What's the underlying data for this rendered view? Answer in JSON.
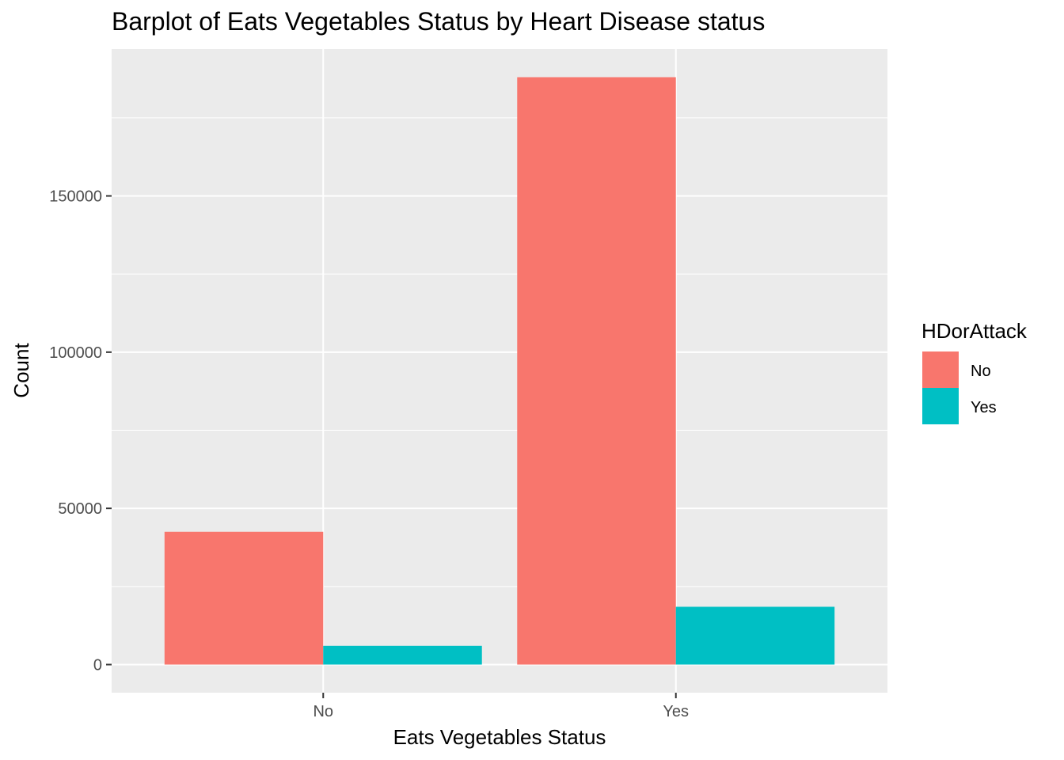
{
  "chart_data": {
    "type": "bar",
    "title": "Barplot of Eats Vegetables Status by Heart Disease status",
    "xlabel": "Eats Vegetables Status",
    "ylabel": "Count",
    "categories": [
      "No",
      "Yes"
    ],
    "series": [
      {
        "name": "No",
        "color": "#F8766D",
        "values": [
          42500,
          188000
        ]
      },
      {
        "name": "Yes",
        "color": "#00BFC4",
        "values": [
          6000,
          18500
        ]
      }
    ],
    "yticks": [
      0,
      50000,
      100000,
      150000
    ],
    "ytick_labels": [
      "0",
      "50000",
      "100000",
      "150000"
    ],
    "ylim": [
      -9000,
      197000
    ],
    "grid": true,
    "legend": {
      "title": "HDorAttack",
      "position": "right",
      "entries": [
        "No",
        "Yes"
      ]
    }
  }
}
